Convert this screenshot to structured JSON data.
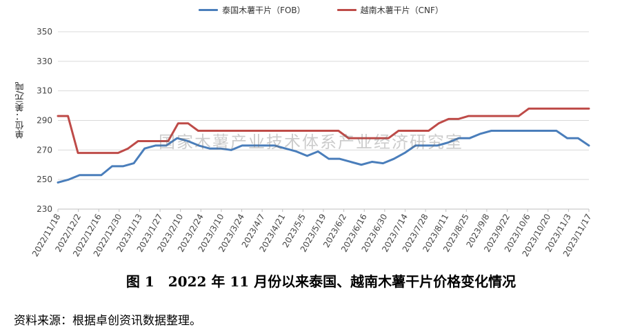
{
  "chart_data": {
    "type": "line",
    "title": "",
    "ylabel": "单位：美元/吨",
    "xlabel": "",
    "ylim": [
      230,
      350
    ],
    "yticks": [
      230,
      250,
      270,
      290,
      310,
      330,
      350
    ],
    "grid": true,
    "legend_position": "top",
    "x_tick_labels": [
      "2022/11/18",
      "2022/12/2",
      "2022/12/16",
      "2022/12/30",
      "2023/1/13",
      "2023/1/27",
      "2023/2/10",
      "2023/2/24",
      "2023/3/10",
      "2023/3/24",
      "2023/4/7",
      "2023/4/21",
      "2023/5/5",
      "2023/5/19",
      "2023/6/2",
      "2023/6/16",
      "2023/6/30",
      "2023/7/14",
      "2023/7/28",
      "2023/8/11",
      "2023/8/25",
      "2023/9/8",
      "2023/9/22",
      "2023/10/6",
      "2023/10/20",
      "2023/11/3",
      "2023/11/17"
    ],
    "series": [
      {
        "name": "泰国木薯干片（FOB）",
        "color": "#4a7ebb",
        "values": [
          248,
          250,
          253,
          253,
          253,
          259,
          259,
          261,
          271,
          273,
          273,
          278,
          276,
          273,
          271,
          271,
          270,
          273,
          273,
          273,
          273,
          271,
          269,
          266,
          269,
          264,
          264,
          262,
          260,
          262,
          261,
          264,
          268,
          273,
          273,
          273,
          275,
          278,
          278,
          281,
          283,
          283,
          283,
          283,
          283,
          283,
          283,
          278,
          278,
          273
        ]
      },
      {
        "name": "越南木薯干片（CNF）",
        "color": "#be4b48",
        "values": [
          293,
          293,
          268,
          268,
          268,
          268,
          268,
          271,
          276,
          276,
          276,
          276,
          288,
          288,
          283,
          283,
          283,
          283,
          283,
          283,
          283,
          283,
          283,
          283,
          283,
          283,
          283,
          283,
          283,
          278,
          278,
          278,
          278,
          278,
          283,
          283,
          283,
          283,
          288,
          291,
          291,
          293,
          293,
          293,
          293,
          293,
          293,
          298,
          298,
          298,
          298,
          298,
          298,
          298
        ]
      }
    ]
  },
  "watermark": "国家木薯产业技术体系产业经济研究室",
  "caption": "图 1　2022 年 11 月份以来泰国、越南木薯干片价格变化情况",
  "source": "资料来源：根据卓创资讯数据整理。"
}
